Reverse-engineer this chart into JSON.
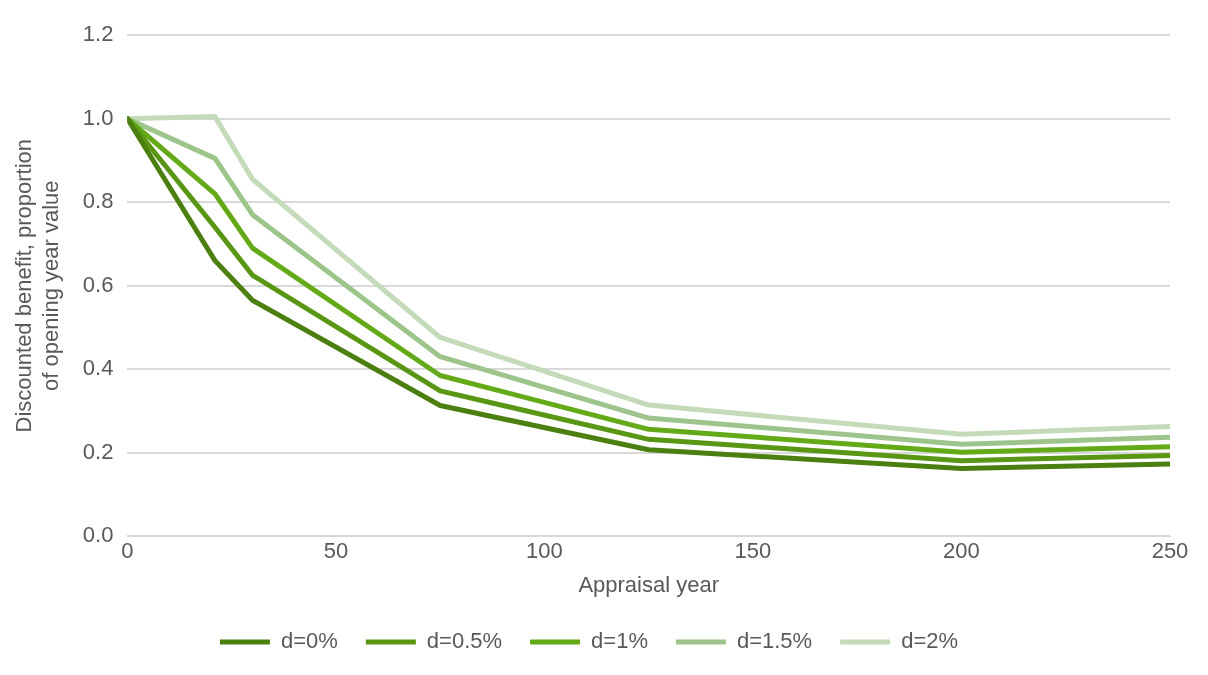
{
  "chart_data": {
    "type": "line",
    "xlabel": "Appraisal year",
    "ylabel": "Discounted benefit, proportion of opening year value",
    "x": [
      0,
      21,
      30,
      75,
      125,
      200,
      250
    ],
    "xlim": [
      0,
      250
    ],
    "xticks": [
      0,
      50,
      100,
      150,
      200,
      250
    ],
    "ylim": [
      0,
      1.2
    ],
    "yticks": [
      {
        "value": 0,
        "label": "0.0"
      },
      {
        "value": 0.2,
        "label": "0.2"
      },
      {
        "value": 0.4,
        "label": "0.4"
      },
      {
        "value": 0.6,
        "label": "0.6"
      },
      {
        "value": 0.8,
        "label": "0.8"
      },
      {
        "value": 1,
        "label": "1.0"
      },
      {
        "value": 1.2,
        "label": "1.2"
      }
    ],
    "grid": "y",
    "legend": "bottom",
    "marker": "none",
    "line_style": "solid",
    "series": [
      {
        "name": "d=0%",
        "color": "#4b7f10",
        "values": [
          1,
          0.66,
          0.565,
          0.313,
          0.207,
          0.162,
          0.173
        ]
      },
      {
        "name": "d=0.5%",
        "color": "#589614",
        "values": [
          1,
          0.74,
          0.625,
          0.348,
          0.232,
          0.181,
          0.193
        ]
      },
      {
        "name": "d=1%",
        "color": "#64aa18",
        "values": [
          1,
          0.82,
          0.69,
          0.385,
          0.256,
          0.201,
          0.214
        ]
      },
      {
        "name": "d=1.5%",
        "color": "#9dc48a",
        "values": [
          1,
          0.905,
          0.77,
          0.43,
          0.283,
          0.22,
          0.237
        ]
      },
      {
        "name": "d=2%",
        "color": "#c3dbb8",
        "values": [
          1,
          1.005,
          0.855,
          0.476,
          0.314,
          0.244,
          0.263
        ]
      }
    ]
  }
}
